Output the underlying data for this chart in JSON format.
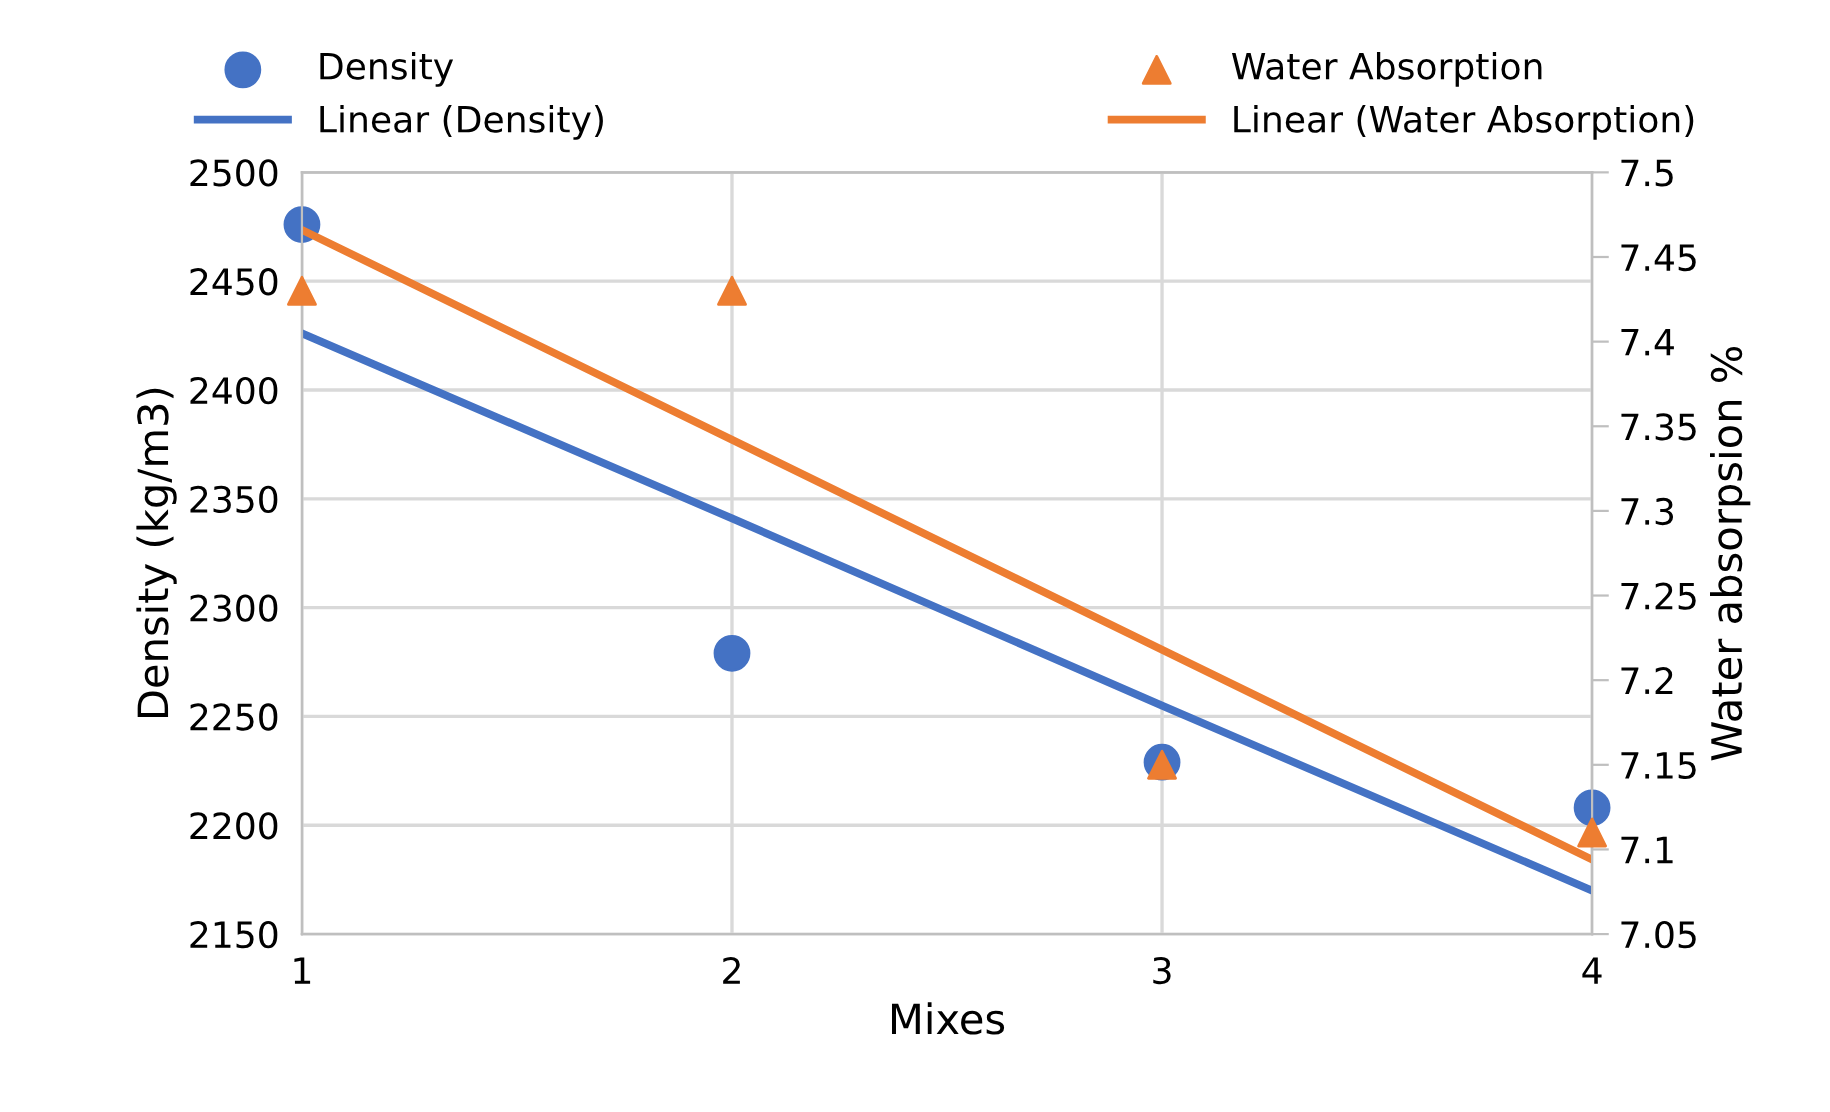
{
  "chart_data": {
    "type": "scatter",
    "xlabel": "Mixes",
    "ylabel": "Density (kg/m3)",
    "y2label": "Water absorpsion %",
    "x": [
      1,
      2,
      3,
      4
    ],
    "series": [
      {
        "name": "Density",
        "marker": "circle",
        "color": "#4472c4",
        "values": [
          2476,
          2279,
          2229,
          2208
        ]
      },
      {
        "name": "Water Absorption",
        "marker": "triangle",
        "axis": "y2",
        "color": "#ed7d31",
        "values": [
          7.43,
          7.43,
          7.15,
          7.11
        ]
      },
      {
        "name": "Linear (Density)",
        "type": "line",
        "marker": "none",
        "color": "#4472c4",
        "values": [
          2426,
          2341,
          2255,
          2170
        ]
      },
      {
        "name": "Linear (Water Absorption)",
        "type": "line",
        "marker": "none",
        "axis": "y2",
        "color": "#ed7d31",
        "values": [
          7.466,
          7.342,
          7.218,
          7.094
        ]
      }
    ],
    "xlim": [
      1,
      4
    ],
    "xticks": [
      1,
      2,
      3,
      4
    ],
    "ylim": [
      2150,
      2500
    ],
    "yticks": [
      2150,
      2200,
      2250,
      2300,
      2350,
      2400,
      2450,
      2500
    ],
    "y2lim": [
      7.05,
      7.5
    ],
    "y2ticks": [
      7.05,
      7.1,
      7.15,
      7.2,
      7.25,
      7.3,
      7.35,
      7.4,
      7.45,
      7.5
    ],
    "grid": true,
    "legend": "top"
  }
}
